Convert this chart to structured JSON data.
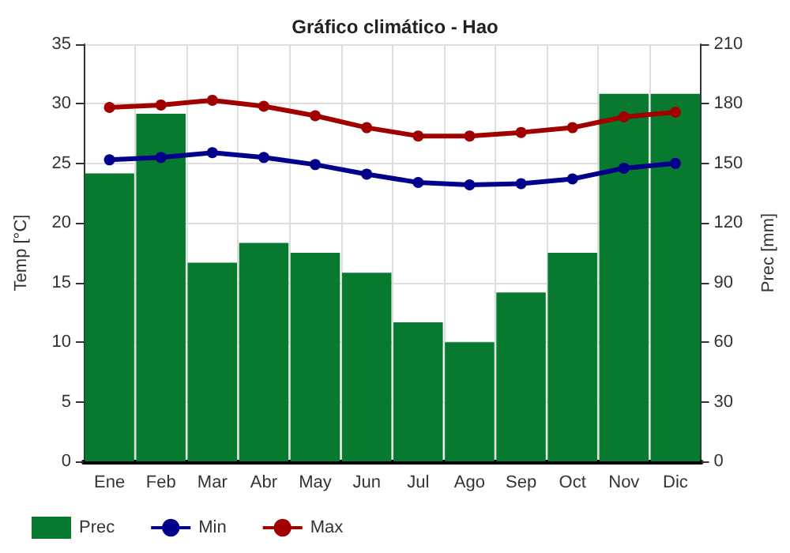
{
  "chart_data": {
    "type": "bar",
    "title": "Gráfico climático - Hao",
    "ylabel": "Temp [°C]",
    "y2label": "Prec [mm]",
    "categories": [
      "Ene",
      "Feb",
      "Mar",
      "Abr",
      "May",
      "Jun",
      "Jul",
      "Ago",
      "Sep",
      "Oct",
      "Nov",
      "Dic"
    ],
    "series": [
      {
        "name": "Prec",
        "axis": "y2",
        "color": "#077a30",
        "values": [
          145,
          175,
          100,
          110,
          105,
          95,
          70,
          60,
          85,
          105,
          185,
          185
        ]
      },
      {
        "name": "Min",
        "type": "line",
        "color": "#00008b",
        "values": [
          25.3,
          25.5,
          25.9,
          25.5,
          24.9,
          24.1,
          23.4,
          23.2,
          23.3,
          23.7,
          24.6,
          25.0
        ]
      },
      {
        "name": "Max",
        "type": "line",
        "color": "#a00000",
        "values": [
          29.7,
          29.9,
          30.3,
          29.8,
          29.0,
          28.0,
          27.3,
          27.3,
          27.6,
          28.0,
          28.9,
          29.3
        ]
      }
    ],
    "ylim": [
      0,
      35
    ],
    "yticks": [
      0,
      5,
      10,
      15,
      20,
      25,
      30,
      35
    ],
    "y2lim": [
      0,
      210
    ],
    "y2ticks": [
      0,
      30,
      60,
      90,
      120,
      150,
      180,
      210
    ],
    "grid": true,
    "legend": "bottom left",
    "marker": "circle",
    "line_style": "solid"
  }
}
